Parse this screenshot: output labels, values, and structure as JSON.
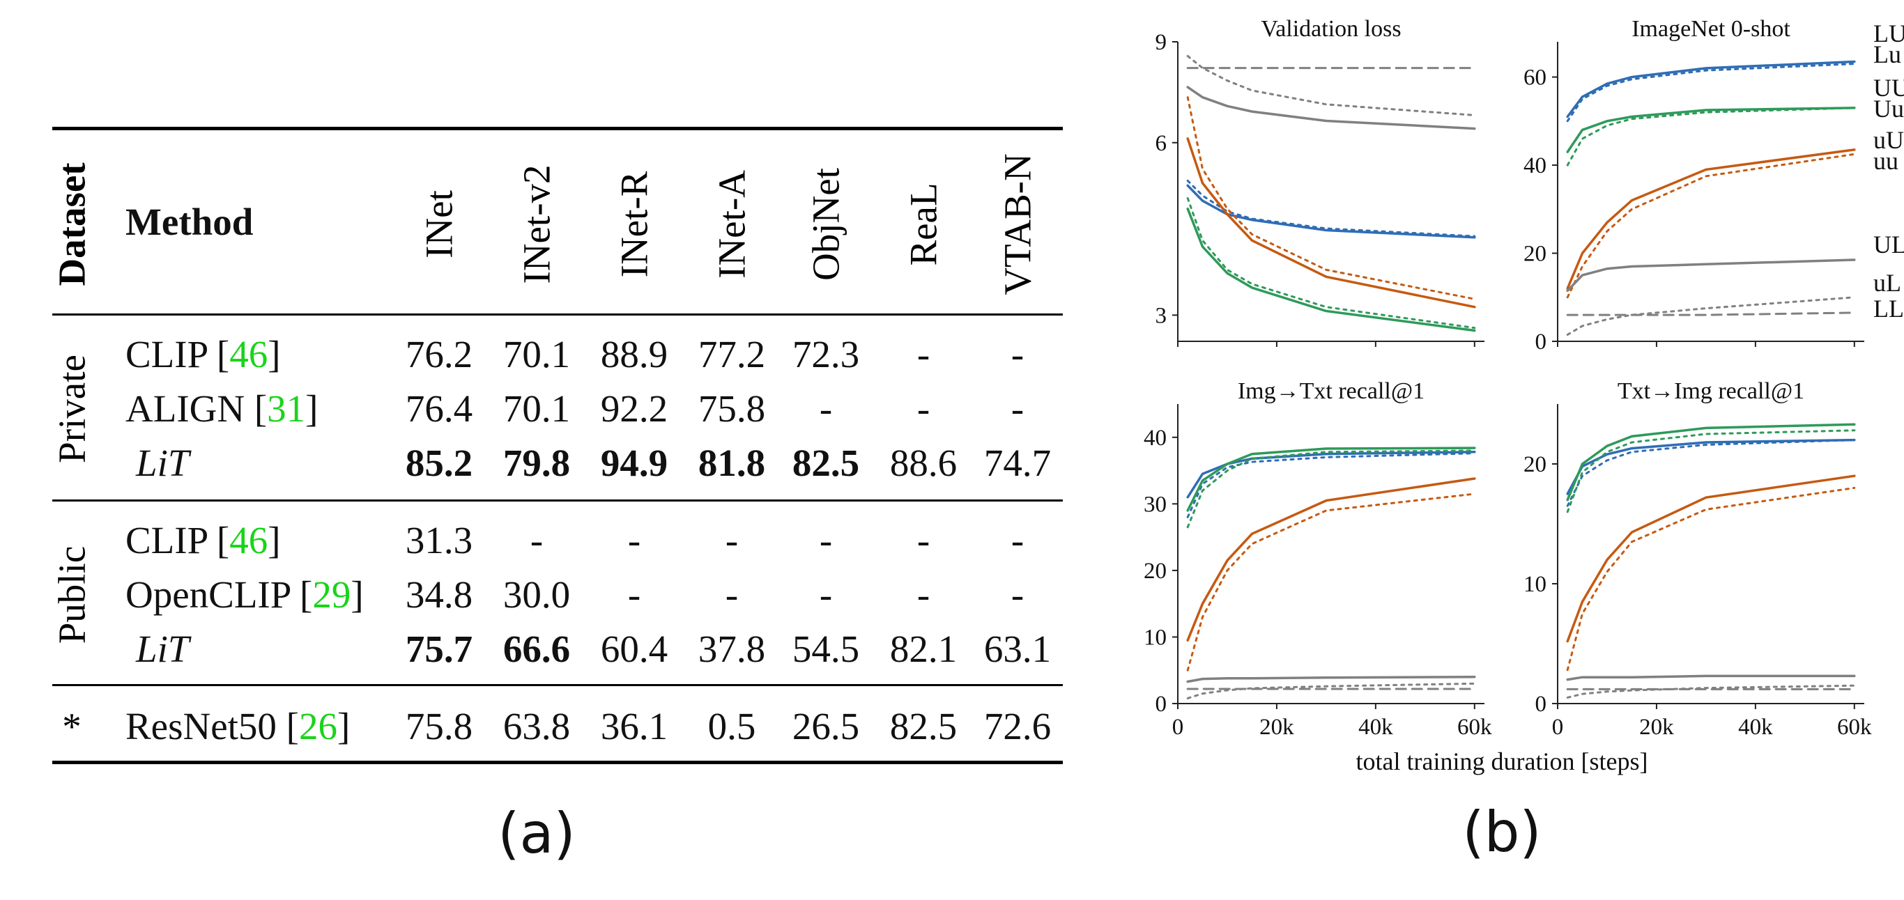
{
  "table": {
    "headers": {
      "dataset": "Dataset",
      "method": "Method",
      "columns": [
        "INet",
        "INet-v2",
        "INet-R",
        "INet-A",
        "ObjNet",
        "ReaL",
        "VTAB-N"
      ]
    },
    "groups": [
      {
        "label": "Private",
        "rows": [
          {
            "method": "CLIP",
            "cite": "46",
            "italic": false,
            "values": [
              "76.2",
              "70.1",
              "88.9",
              "77.2",
              "72.3",
              "-",
              "-"
            ],
            "bold": [
              false,
              false,
              false,
              false,
              false,
              false,
              false
            ]
          },
          {
            "method": "ALIGN",
            "cite": "31",
            "italic": false,
            "values": [
              "76.4",
              "70.1",
              "92.2",
              "75.8",
              "-",
              "-",
              "-"
            ],
            "bold": [
              false,
              false,
              false,
              false,
              false,
              false,
              false
            ]
          },
          {
            "method": "LiT",
            "cite": "",
            "italic": true,
            "values": [
              "85.2",
              "79.8",
              "94.9",
              "81.8",
              "82.5",
              "88.6",
              "74.7"
            ],
            "bold": [
              true,
              true,
              true,
              true,
              true,
              false,
              false
            ]
          }
        ]
      },
      {
        "label": "Public",
        "rows": [
          {
            "method": "CLIP",
            "cite": "46",
            "italic": false,
            "values": [
              "31.3",
              "-",
              "-",
              "-",
              "-",
              "-",
              "-"
            ],
            "bold": [
              false,
              false,
              false,
              false,
              false,
              false,
              false
            ]
          },
          {
            "method": "OpenCLIP",
            "cite": "29",
            "italic": false,
            "values": [
              "34.8",
              "30.0",
              "-",
              "-",
              "-",
              "-",
              "-"
            ],
            "bold": [
              false,
              false,
              false,
              false,
              false,
              false,
              false
            ]
          },
          {
            "method": "LiT",
            "cite": "",
            "italic": true,
            "values": [
              "75.7",
              "66.6",
              "60.4",
              "37.8",
              "54.5",
              "82.1",
              "63.1"
            ],
            "bold": [
              true,
              true,
              false,
              false,
              false,
              false,
              false
            ]
          }
        ]
      },
      {
        "label": "*",
        "rows": [
          {
            "method": "ResNet50",
            "cite": "26",
            "italic": false,
            "values": [
              "75.8",
              "63.8",
              "36.1",
              "0.5",
              "26.5",
              "82.5",
              "72.6"
            ],
            "bold": [
              false,
              false,
              false,
              false,
              false,
              false,
              false
            ]
          }
        ]
      }
    ],
    "caption": "(a)"
  },
  "figure": {
    "caption": "(b)",
    "xlabel": "total training duration [steps]",
    "xticks": [
      "0",
      "20k",
      "40k",
      "60k"
    ],
    "legend": [
      {
        "label": "LU",
        "color": "#2f6db5"
      },
      {
        "label": "Lu",
        "color": "#2f6db5"
      },
      {
        "label": "UU",
        "color": "#2e9a5a"
      },
      {
        "label": "Uu",
        "color": "#2e9a5a"
      },
      {
        "label": "uU",
        "color": "#c55a11"
      },
      {
        "label": "uu",
        "color": "#c55a11"
      },
      {
        "label": "UL",
        "color": "#808080"
      },
      {
        "label": "uL",
        "color": "#808080"
      },
      {
        "label": "LL",
        "color": "#808080"
      }
    ]
  },
  "chart_data": [
    {
      "type": "line",
      "title": "Validation loss",
      "xlim": [
        0,
        62000
      ],
      "ylim": [
        2.7,
        9
      ],
      "yscale": "log",
      "yticks": [
        3,
        6,
        9
      ],
      "series": [
        {
          "name": "LU",
          "color": "#2f6db5",
          "dash": "solid",
          "x": [
            2000,
            5000,
            10000,
            15000,
            30000,
            60000
          ],
          "y": [
            5.05,
            4.75,
            4.5,
            4.4,
            4.22,
            4.1
          ]
        },
        {
          "name": "Lu",
          "color": "#2f6db5",
          "dash": "dot",
          "x": [
            2000,
            5000,
            10000,
            15000,
            30000,
            60000
          ],
          "y": [
            5.15,
            4.85,
            4.55,
            4.42,
            4.25,
            4.12
          ]
        },
        {
          "name": "UU",
          "color": "#2e9a5a",
          "dash": "solid",
          "x": [
            2000,
            5000,
            10000,
            15000,
            30000,
            60000
          ],
          "y": [
            4.6,
            3.95,
            3.55,
            3.35,
            3.05,
            2.82
          ]
        },
        {
          "name": "Uu",
          "color": "#2e9a5a",
          "dash": "dot",
          "x": [
            2000,
            5000,
            10000,
            15000,
            30000,
            60000
          ],
          "y": [
            4.8,
            4.05,
            3.6,
            3.4,
            3.1,
            2.85
          ]
        },
        {
          "name": "uU",
          "color": "#c55a11",
          "dash": "solid",
          "x": [
            2000,
            5000,
            10000,
            15000,
            30000,
            60000
          ],
          "y": [
            6.1,
            5.1,
            4.5,
            4.05,
            3.5,
            3.1
          ]
        },
        {
          "name": "uu",
          "color": "#c55a11",
          "dash": "dot",
          "x": [
            2000,
            5000,
            10000,
            15000,
            30000,
            60000
          ],
          "y": [
            7.2,
            5.4,
            4.6,
            4.15,
            3.6,
            3.2
          ]
        },
        {
          "name": "UL",
          "color": "#808080",
          "dash": "solid",
          "x": [
            2000,
            5000,
            10000,
            15000,
            30000,
            60000
          ],
          "y": [
            7.5,
            7.2,
            6.95,
            6.8,
            6.55,
            6.35
          ]
        },
        {
          "name": "uL",
          "color": "#808080",
          "dash": "dot",
          "x": [
            2000,
            5000,
            10000,
            15000,
            30000,
            60000
          ],
          "y": [
            8.5,
            8.1,
            7.7,
            7.4,
            7.0,
            6.7
          ]
        },
        {
          "name": "LL",
          "color": "#808080",
          "dash": "dash",
          "x": [
            2000,
            5000,
            10000,
            15000,
            30000,
            60000
          ],
          "y": [
            8.1,
            8.1,
            8.1,
            8.1,
            8.1,
            8.1
          ]
        }
      ]
    },
    {
      "type": "line",
      "title": "ImageNet 0-shot",
      "xlim": [
        0,
        62000
      ],
      "ylim": [
        0,
        68
      ],
      "yticks": [
        0,
        20,
        40,
        60
      ],
      "series": [
        {
          "name": "LU",
          "color": "#2f6db5",
          "dash": "solid",
          "x": [
            2000,
            5000,
            10000,
            15000,
            30000,
            60000
          ],
          "y": [
            51,
            55.5,
            58.5,
            60,
            62,
            63.5
          ]
        },
        {
          "name": "Lu",
          "color": "#2f6db5",
          "dash": "dot",
          "x": [
            2000,
            5000,
            10000,
            15000,
            30000,
            60000
          ],
          "y": [
            50,
            55,
            58,
            59.5,
            61.5,
            63
          ]
        },
        {
          "name": "UU",
          "color": "#2e9a5a",
          "dash": "solid",
          "x": [
            2000,
            5000,
            10000,
            15000,
            30000,
            60000
          ],
          "y": [
            43,
            48,
            50,
            51,
            52.5,
            53
          ]
        },
        {
          "name": "Uu",
          "color": "#2e9a5a",
          "dash": "dot",
          "x": [
            2000,
            5000,
            10000,
            15000,
            30000,
            60000
          ],
          "y": [
            40,
            46,
            49,
            50.5,
            52,
            53
          ]
        },
        {
          "name": "uU",
          "color": "#c55a11",
          "dash": "solid",
          "x": [
            2000,
            5000,
            10000,
            15000,
            30000,
            60000
          ],
          "y": [
            12,
            20,
            27,
            32,
            39,
            43.5
          ]
        },
        {
          "name": "uu",
          "color": "#c55a11",
          "dash": "dot",
          "x": [
            2000,
            5000,
            10000,
            15000,
            30000,
            60000
          ],
          "y": [
            10,
            17,
            25,
            30,
            37.5,
            42.5
          ]
        },
        {
          "name": "UL",
          "color": "#808080",
          "dash": "solid",
          "x": [
            2000,
            5000,
            10000,
            15000,
            30000,
            60000
          ],
          "y": [
            11.5,
            15,
            16.5,
            17,
            17.5,
            18.5
          ]
        },
        {
          "name": "uL",
          "color": "#808080",
          "dash": "dot",
          "x": [
            2000,
            5000,
            10000,
            15000,
            30000,
            60000
          ],
          "y": [
            1.5,
            3.5,
            5,
            6,
            7.5,
            10
          ]
        },
        {
          "name": "LL",
          "color": "#808080",
          "dash": "dash",
          "x": [
            2000,
            5000,
            10000,
            15000,
            30000,
            60000
          ],
          "y": [
            6,
            6,
            6,
            6,
            6,
            6.5
          ]
        }
      ]
    },
    {
      "type": "line",
      "title": "Img→Txt recall@1",
      "xlim": [
        0,
        62000
      ],
      "ylim": [
        0,
        45
      ],
      "yticks": [
        0,
        10,
        20,
        30,
        40
      ],
      "series": [
        {
          "name": "LU",
          "color": "#2f6db5",
          "dash": "solid",
          "x": [
            2000,
            5000,
            10000,
            15000,
            30000,
            60000
          ],
          "y": [
            31,
            34.5,
            36,
            36.8,
            37.5,
            37.8
          ]
        },
        {
          "name": "Lu",
          "color": "#2f6db5",
          "dash": "dot",
          "x": [
            2000,
            5000,
            10000,
            15000,
            30000,
            60000
          ],
          "y": [
            28,
            33,
            35.5,
            36.3,
            37,
            37.6
          ]
        },
        {
          "name": "UU",
          "color": "#2e9a5a",
          "dash": "solid",
          "x": [
            2000,
            5000,
            10000,
            15000,
            30000,
            60000
          ],
          "y": [
            29,
            33.5,
            36,
            37.5,
            38.3,
            38.4
          ]
        },
        {
          "name": "Uu",
          "color": "#2e9a5a",
          "dash": "dot",
          "x": [
            2000,
            5000,
            10000,
            15000,
            30000,
            60000
          ],
          "y": [
            26.5,
            32,
            35,
            36.8,
            37.8,
            38
          ]
        },
        {
          "name": "uU",
          "color": "#c55a11",
          "dash": "solid",
          "x": [
            2000,
            5000,
            10000,
            15000,
            30000,
            60000
          ],
          "y": [
            9.5,
            15,
            21.5,
            25.5,
            30.5,
            33.8
          ]
        },
        {
          "name": "uu",
          "color": "#c55a11",
          "dash": "dot",
          "x": [
            2000,
            5000,
            10000,
            15000,
            30000,
            60000
          ],
          "y": [
            5,
            13,
            20,
            24,
            29,
            31.5
          ]
        },
        {
          "name": "UL",
          "color": "#808080",
          "dash": "solid",
          "x": [
            2000,
            5000,
            10000,
            15000,
            30000,
            60000
          ],
          "y": [
            3.3,
            3.7,
            3.8,
            3.8,
            3.9,
            4
          ]
        },
        {
          "name": "uL",
          "color": "#808080",
          "dash": "dot",
          "x": [
            2000,
            5000,
            10000,
            15000,
            30000,
            60000
          ],
          "y": [
            0.8,
            1.5,
            2,
            2.3,
            2.6,
            3
          ]
        },
        {
          "name": "LL",
          "color": "#808080",
          "dash": "dash",
          "x": [
            2000,
            5000,
            10000,
            15000,
            30000,
            60000
          ],
          "y": [
            2.2,
            2.2,
            2.2,
            2.2,
            2.2,
            2.2
          ]
        }
      ]
    },
    {
      "type": "line",
      "title": "Txt→Img recall@1",
      "xlim": [
        0,
        62000
      ],
      "ylim": [
        0,
        25
      ],
      "yticks": [
        0,
        10,
        20
      ],
      "series": [
        {
          "name": "LU",
          "color": "#2f6db5",
          "dash": "solid",
          "x": [
            2000,
            5000,
            10000,
            15000,
            30000,
            60000
          ],
          "y": [
            17.5,
            19.8,
            20.8,
            21.3,
            21.8,
            22
          ]
        },
        {
          "name": "Lu",
          "color": "#2f6db5",
          "dash": "dot",
          "x": [
            2000,
            5000,
            10000,
            15000,
            30000,
            60000
          ],
          "y": [
            16.5,
            19,
            20.3,
            21,
            21.6,
            22
          ]
        },
        {
          "name": "UU",
          "color": "#2e9a5a",
          "dash": "solid",
          "x": [
            2000,
            5000,
            10000,
            15000,
            30000,
            60000
          ],
          "y": [
            17,
            20,
            21.5,
            22.3,
            23,
            23.3
          ]
        },
        {
          "name": "Uu",
          "color": "#2e9a5a",
          "dash": "dot",
          "x": [
            2000,
            5000,
            10000,
            15000,
            30000,
            60000
          ],
          "y": [
            16,
            19.3,
            21,
            21.8,
            22.5,
            22.8
          ]
        },
        {
          "name": "uU",
          "color": "#c55a11",
          "dash": "solid",
          "x": [
            2000,
            5000,
            10000,
            15000,
            30000,
            60000
          ],
          "y": [
            5.2,
            8.5,
            12,
            14.3,
            17.2,
            19
          ]
        },
        {
          "name": "uu",
          "color": "#c55a11",
          "dash": "dot",
          "x": [
            2000,
            5000,
            10000,
            15000,
            30000,
            60000
          ],
          "y": [
            2.8,
            7.5,
            11,
            13.5,
            16.2,
            18
          ]
        },
        {
          "name": "UL",
          "color": "#808080",
          "dash": "solid",
          "x": [
            2000,
            5000,
            10000,
            15000,
            30000,
            60000
          ],
          "y": [
            2,
            2.2,
            2.2,
            2.2,
            2.3,
            2.3
          ]
        },
        {
          "name": "uL",
          "color": "#808080",
          "dash": "dot",
          "x": [
            2000,
            5000,
            10000,
            15000,
            30000,
            60000
          ],
          "y": [
            0.5,
            0.8,
            1,
            1.1,
            1.3,
            1.5
          ]
        },
        {
          "name": "LL",
          "color": "#808080",
          "dash": "dash",
          "x": [
            2000,
            5000,
            10000,
            15000,
            30000,
            60000
          ],
          "y": [
            1.2,
            1.2,
            1.2,
            1.2,
            1.2,
            1.2
          ]
        }
      ]
    }
  ]
}
